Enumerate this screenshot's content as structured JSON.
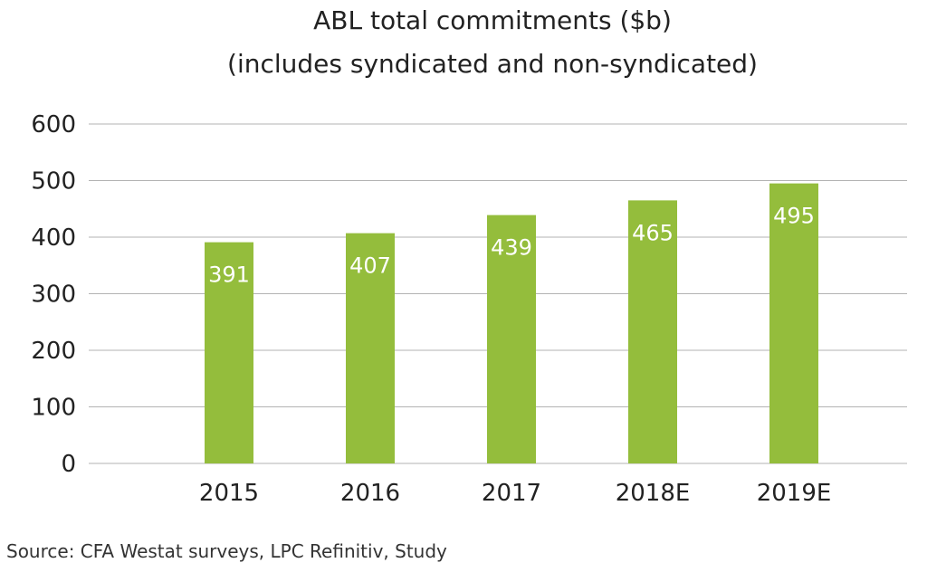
{
  "chart_data": {
    "type": "bar",
    "title_lines": [
      "ABL total commitments ($b)",
      "(includes syndicated and non-syndicated)"
    ],
    "categories": [
      "2015",
      "2016",
      "2017",
      "2018E",
      "2019E"
    ],
    "values": [
      391,
      407,
      439,
      465,
      495
    ],
    "data_labels": [
      "391",
      "407",
      "439",
      "465",
      "495"
    ],
    "ylim": [
      0,
      600
    ],
    "yticks": [
      0,
      100,
      200,
      300,
      400,
      500,
      600
    ],
    "xlabel": "",
    "ylabel": "",
    "grid": true,
    "legend": "none",
    "bar_color": "#94bd3c",
    "data_label_color": "#ffffff",
    "grid_color": "#b3b3b3"
  },
  "source": "Source: CFA Westat surveys, LPC Refinitiv, Study"
}
